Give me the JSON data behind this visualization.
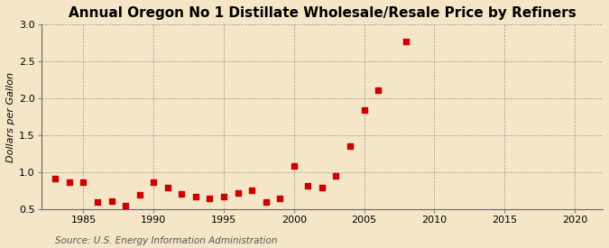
{
  "title": "Annual Oregon No 1 Distillate Wholesale/Resale Price by Refiners",
  "ylabel": "Dollars per Gallon",
  "source": "Source: U.S. Energy Information Administration",
  "background_color": "#f5e6c8",
  "plot_bg_color": "#f5e6c8",
  "years": [
    1983,
    1984,
    1985,
    1986,
    1987,
    1988,
    1989,
    1990,
    1991,
    1992,
    1993,
    1994,
    1995,
    1996,
    1997,
    1998,
    1999,
    2000,
    2001,
    2002,
    2003,
    2004,
    2005,
    2006,
    2008
  ],
  "values": [
    0.91,
    0.87,
    0.86,
    0.6,
    0.61,
    0.55,
    0.69,
    0.86,
    0.79,
    0.7,
    0.67,
    0.65,
    0.67,
    0.72,
    0.76,
    0.6,
    0.65,
    1.08,
    0.82,
    0.79,
    0.95,
    1.35,
    1.84,
    2.11,
    2.77
  ],
  "marker_color": "#cc0000",
  "marker_size": 4,
  "xlim": [
    1982,
    2022
  ],
  "ylim": [
    0.5,
    3.0
  ],
  "xticks": [
    1985,
    1990,
    1995,
    2000,
    2005,
    2010,
    2015,
    2020
  ],
  "yticks": [
    0.5,
    1.0,
    1.5,
    2.0,
    2.5,
    3.0
  ],
  "title_fontsize": 11,
  "label_fontsize": 8,
  "tick_fontsize": 8,
  "source_fontsize": 7.5
}
